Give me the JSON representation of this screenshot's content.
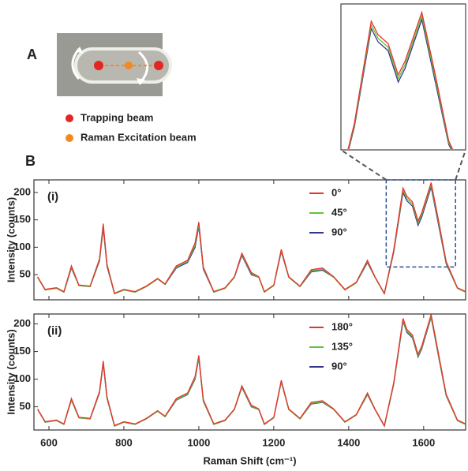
{
  "figure": {
    "labels": [
      "A",
      "B"
    ],
    "beams": [
      {
        "name": "Trapping beam",
        "color": "#e3261f"
      },
      {
        "name": "Raman Excitation beam",
        "color": "#f08a24"
      }
    ]
  },
  "chart_data": [
    {
      "type": "line",
      "panel": "(i)",
      "ylabel": "Intensity (counts)",
      "xlim": [
        560,
        1712
      ],
      "ylim": [
        4,
        223
      ],
      "xticks": [
        600,
        800,
        1000,
        1200,
        1400,
        1600
      ],
      "xtick_labels": false,
      "yticks": [
        50,
        100,
        150,
        200
      ],
      "inset": {
        "xlim": [
          1500,
          1685
        ],
        "ylim": [
          64,
          223
        ]
      },
      "x": [
        570,
        590,
        620,
        640,
        660,
        680,
        710,
        735,
        745,
        755,
        775,
        800,
        830,
        860,
        890,
        910,
        940,
        970,
        990,
        1000,
        1012,
        1040,
        1070,
        1095,
        1115,
        1140,
        1160,
        1175,
        1200,
        1220,
        1240,
        1270,
        1300,
        1330,
        1360,
        1390,
        1420,
        1450,
        1470,
        1495,
        1520,
        1545,
        1555,
        1570,
        1585,
        1595,
        1620,
        1640,
        1660,
        1690,
        1712
      ],
      "series": [
        {
          "name": "0°",
          "color": "#e8322a",
          "values": [
            46,
            23,
            26,
            19,
            66,
            31,
            29,
            79,
            143,
            69,
            16,
            23,
            19,
            29,
            43,
            33,
            66,
            76,
            108,
            146,
            64,
            19,
            26,
            46,
            89,
            54,
            46,
            19,
            31,
            96,
            46,
            29,
            59,
            62,
            46,
            23,
            36,
            76,
            46,
            16,
            94,
            208,
            193,
            183,
            148,
            163,
            218,
            148,
            74,
            26,
            19
          ]
        },
        {
          "name": "45°",
          "color": "#62c23a",
          "values": [
            45,
            22,
            25,
            18,
            64,
            30,
            28,
            77,
            139,
            67,
            15,
            22,
            18,
            28,
            42,
            32,
            64,
            74,
            104,
            142,
            62,
            18,
            25,
            45,
            87,
            52,
            45,
            18,
            30,
            94,
            45,
            28,
            57,
            60,
            45,
            22,
            35,
            74,
            45,
            15,
            92,
            204,
            189,
            179,
            144,
            159,
            214,
            144,
            72,
            25,
            18
          ]
        },
        {
          "name": "90°",
          "color": "#35378f",
          "values": [
            45,
            22,
            25,
            18,
            62,
            30,
            28,
            75,
            135,
            65,
            15,
            22,
            18,
            28,
            42,
            32,
            62,
            72,
            100,
            138,
            60,
            18,
            25,
            45,
            85,
            50,
            45,
            18,
            30,
            92,
            45,
            28,
            55,
            58,
            45,
            22,
            35,
            72,
            45,
            15,
            90,
            200,
            185,
            175,
            140,
            155,
            210,
            140,
            70,
            25,
            18
          ]
        }
      ]
    },
    {
      "type": "line",
      "panel": "(ii)",
      "ylabel": "Intensity (counts)",
      "xlabel": "Raman Shift (cm⁻¹)",
      "xlim": [
        560,
        1712
      ],
      "ylim": [
        8,
        218
      ],
      "xticks": [
        600,
        800,
        1000,
        1200,
        1400,
        1600
      ],
      "xtick_labels": true,
      "yticks": [
        50,
        100,
        150,
        200
      ],
      "x": [
        570,
        590,
        620,
        640,
        660,
        680,
        710,
        735,
        745,
        755,
        775,
        800,
        830,
        860,
        890,
        910,
        940,
        970,
        990,
        1000,
        1012,
        1040,
        1070,
        1095,
        1115,
        1140,
        1160,
        1175,
        1200,
        1220,
        1240,
        1270,
        1300,
        1330,
        1360,
        1390,
        1420,
        1450,
        1470,
        1495,
        1520,
        1545,
        1555,
        1570,
        1585,
        1595,
        1620,
        1640,
        1660,
        1690,
        1712
      ],
      "series": [
        {
          "name": "180°",
          "color": "#e8322a",
          "values": [
            46,
            23,
            26,
            19,
            65,
            31,
            29,
            78,
            133,
            68,
            16,
            23,
            19,
            29,
            43,
            33,
            65,
            75,
            105,
            143,
            63,
            19,
            26,
            46,
            88,
            53,
            46,
            19,
            31,
            98,
            46,
            29,
            58,
            61,
            46,
            23,
            36,
            75,
            46,
            16,
            93,
            210,
            190,
            180,
            145,
            160,
            217,
            145,
            73,
            26,
            19
          ]
        },
        {
          "name": "135°",
          "color": "#62c23a",
          "values": [
            45,
            22,
            25,
            18,
            63,
            30,
            28,
            76,
            130,
            66,
            15,
            22,
            18,
            28,
            42,
            32,
            63,
            73,
            102,
            140,
            61,
            18,
            25,
            45,
            86,
            51,
            45,
            18,
            30,
            96,
            45,
            28,
            56,
            59,
            45,
            22,
            35,
            73,
            45,
            15,
            91,
            207,
            187,
            177,
            142,
            157,
            214,
            142,
            71,
            25,
            18
          ]
        },
        {
          "name": "90°",
          "color": "#35378f",
          "values": [
            45,
            22,
            25,
            18,
            62,
            30,
            28,
            75,
            128,
            65,
            15,
            22,
            18,
            28,
            42,
            32,
            62,
            72,
            100,
            138,
            60,
            18,
            25,
            45,
            85,
            50,
            45,
            18,
            30,
            95,
            45,
            28,
            55,
            58,
            45,
            22,
            35,
            72,
            45,
            15,
            90,
            205,
            185,
            175,
            140,
            155,
            212,
            140,
            70,
            25,
            18
          ]
        }
      ]
    }
  ]
}
